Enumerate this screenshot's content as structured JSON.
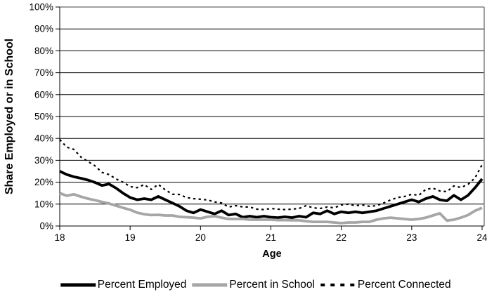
{
  "colors": {
    "background": "#ffffff",
    "gridline": "#000000",
    "plot_border": "#808080",
    "axis": "#000000",
    "employed_line": "#000000",
    "school_line": "#a6a6a6",
    "connected_line": "#000000"
  },
  "chart_data": {
    "type": "line",
    "title": "",
    "ylabel": "Share Employed or in School",
    "xlabel": "Age",
    "ylim": [
      0,
      100
    ],
    "xlim": [
      18,
      24
    ],
    "grid": "horizontal",
    "legend_position": "bottom",
    "y_ticks": [
      "0%",
      "10%",
      "20%",
      "30%",
      "40%",
      "50%",
      "60%",
      "70%",
      "80%",
      "90%",
      "100%"
    ],
    "x_ticks": [
      "18",
      "19",
      "20",
      "21",
      "22",
      "23",
      "24"
    ],
    "x": [
      18,
      18.1,
      18.2,
      18.3,
      18.4,
      18.5,
      18.6,
      18.7,
      18.8,
      18.9,
      19,
      19.1,
      19.2,
      19.3,
      19.4,
      19.5,
      19.6,
      19.7,
      19.8,
      19.9,
      20,
      20.1,
      20.2,
      20.3,
      20.4,
      20.5,
      20.6,
      20.7,
      20.8,
      20.9,
      21,
      21.1,
      21.2,
      21.3,
      21.4,
      21.5,
      21.6,
      21.7,
      21.8,
      21.9,
      22,
      22.1,
      22.2,
      22.3,
      22.4,
      22.5,
      22.6,
      22.7,
      22.8,
      22.9,
      23,
      23.1,
      23.2,
      23.3,
      23.4,
      23.5,
      23.6,
      23.7,
      23.8,
      23.9,
      24
    ],
    "series": [
      {
        "id": "percent-employed",
        "name": "Percent Employed",
        "color": "#000000",
        "style": "solid",
        "line_width": 3.8,
        "dash": null,
        "values": [
          25.0,
          23.5,
          22.5,
          21.8,
          21.0,
          19.9,
          18.5,
          19.2,
          17.3,
          15.0,
          13.0,
          12.0,
          12.5,
          12.0,
          13.5,
          12.0,
          10.5,
          9.0,
          7.0,
          6.0,
          7.5,
          6.5,
          5.5,
          7.0,
          5.0,
          5.5,
          4.0,
          4.5,
          4.0,
          4.5,
          4.0,
          3.8,
          4.2,
          3.8,
          4.5,
          4.0,
          6.0,
          5.5,
          7.0,
          5.5,
          6.5,
          6.0,
          6.5,
          6.0,
          6.5,
          7.0,
          8.0,
          9.0,
          10.0,
          11.0,
          12.0,
          11.0,
          12.5,
          13.5,
          12.0,
          11.5,
          14.0,
          12.0,
          14.0,
          17.5,
          21.5
        ]
      },
      {
        "id": "percent-in-school",
        "name": "Percent in School",
        "color": "#a6a6a6",
        "style": "solid",
        "line_width": 3.8,
        "dash": null,
        "values": [
          15.0,
          13.8,
          14.5,
          13.4,
          12.5,
          11.8,
          11.0,
          10.3,
          9.3,
          8.3,
          7.4,
          6.1,
          5.4,
          5.0,
          5.1,
          4.8,
          4.8,
          4.2,
          4.0,
          3.8,
          3.5,
          4.2,
          4.5,
          3.8,
          3.2,
          3.2,
          3.2,
          2.9,
          2.9,
          2.9,
          2.9,
          2.7,
          2.7,
          2.6,
          2.6,
          2.2,
          1.9,
          1.9,
          1.9,
          1.6,
          1.3,
          1.6,
          1.6,
          1.9,
          1.9,
          2.9,
          3.5,
          3.8,
          3.5,
          3.2,
          2.9,
          3.2,
          3.8,
          4.8,
          5.8,
          2.5,
          2.9,
          3.8,
          5.0,
          7.0,
          8.3
        ]
      },
      {
        "id": "percent-connected",
        "name": "Percent Connected",
        "color": "#000000",
        "style": "dashed",
        "line_width": 2.2,
        "dash": "3.3 4.4",
        "values": [
          39.5,
          36.0,
          35.0,
          31.5,
          29.5,
          27.5,
          24.5,
          23.5,
          21.5,
          20.0,
          18.0,
          17.5,
          18.9,
          16.7,
          19.0,
          16.5,
          14.5,
          14.4,
          13.0,
          12.5,
          12.2,
          11.9,
          11.0,
          10.5,
          8.7,
          9.3,
          8.7,
          8.7,
          7.7,
          7.5,
          8.0,
          7.7,
          7.5,
          7.7,
          8.0,
          9.3,
          8.3,
          8.0,
          8.7,
          8.3,
          9.6,
          10.0,
          9.3,
          9.6,
          9.0,
          9.3,
          10.5,
          11.9,
          13.0,
          13.5,
          14.5,
          14.0,
          16.7,
          17.3,
          16.0,
          15.7,
          18.3,
          17.6,
          19.0,
          22.0,
          28.0
        ]
      }
    ]
  }
}
